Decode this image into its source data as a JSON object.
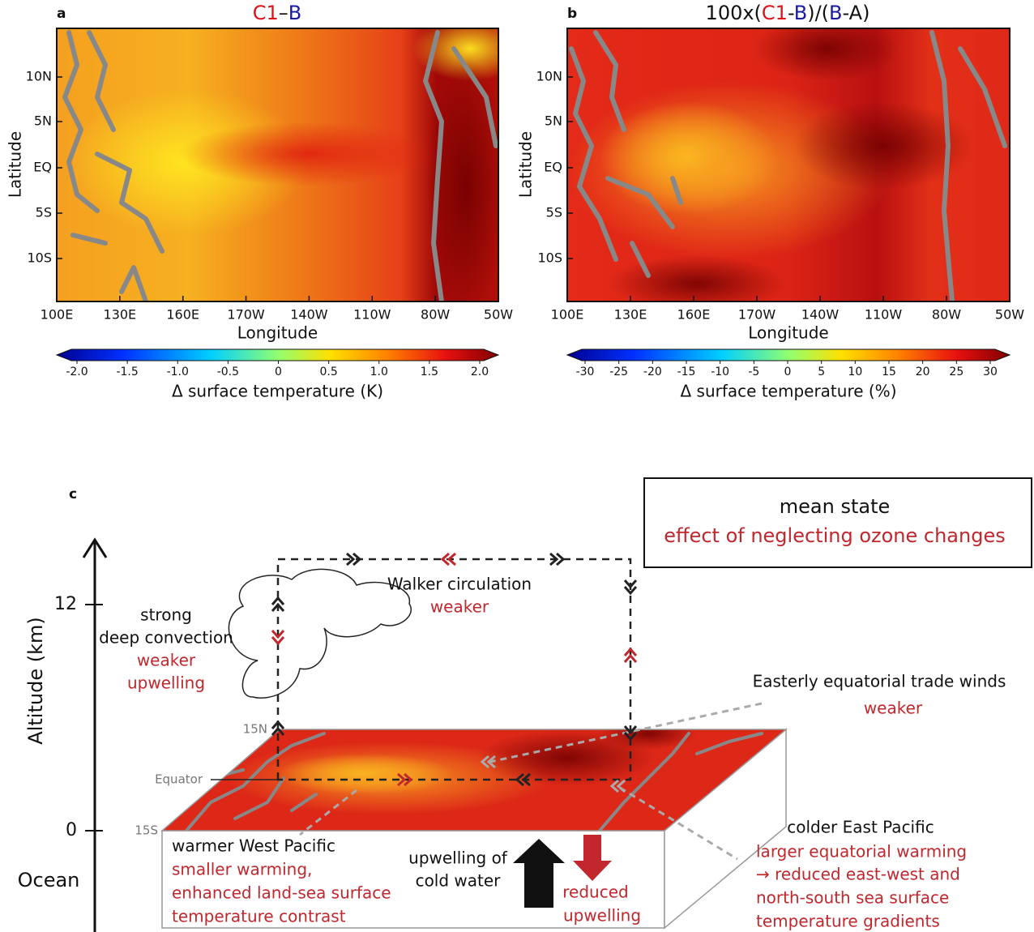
{
  "panel_a": {
    "label": "a",
    "title": [
      "C1",
      "–",
      "B"
    ],
    "y_label": "Latitude",
    "x_label": "Longitude",
    "yticks": [
      "10N",
      "5N",
      "EQ",
      "5S",
      "10S"
    ],
    "xticks": [
      "100E",
      "130E",
      "160E",
      "170W",
      "140W",
      "110W",
      "80W",
      "50W"
    ],
    "colorbar_ticks": [
      "-2.0",
      "-1.5",
      "-1.0",
      "-0.5",
      "0",
      "0.5",
      "1.0",
      "1.5",
      "2.0"
    ],
    "colorbar_label": "Δ surface temperature (K)"
  },
  "panel_b": {
    "label": "b",
    "title": [
      "100x(",
      "C1",
      "-",
      "B",
      ")/(",
      "B",
      "-A)"
    ],
    "y_label": "Latitude",
    "x_label": "Longitude",
    "yticks": [
      "10N",
      "5N",
      "EQ",
      "5S",
      "10S"
    ],
    "xticks": [
      "100E",
      "130E",
      "160E",
      "170W",
      "140W",
      "110W",
      "80W",
      "50W"
    ],
    "colorbar_ticks": [
      "-30",
      "-25",
      "-20",
      "-15",
      "-10",
      "-5",
      "0",
      "5",
      "10",
      "15",
      "20",
      "25",
      "30"
    ],
    "colorbar_label": "Δ surface temperature (%)"
  },
  "panel_c": {
    "label": "c",
    "box": [
      "mean state",
      "effect of  neglecting ozone changes"
    ],
    "axis_label": "Altitude (km)",
    "axis_ticks": [
      "12",
      "0"
    ],
    "ocean": "Ocean",
    "lat_labels": [
      "15N",
      "Equator",
      "15S"
    ],
    "walker": [
      "Walker circulation",
      "weaker"
    ],
    "convection": [
      "strong",
      "deep convection",
      "weaker",
      "upwelling"
    ],
    "trade": [
      "Easterly equatorial trade winds",
      "weaker"
    ],
    "west": [
      "warmer West Pacific",
      "smaller warming,",
      "enhanced land-sea surface",
      "temperature contrast"
    ],
    "upwelling": [
      "upwelling of",
      "cold water"
    ],
    "reduced": [
      "reduced",
      "upwelling"
    ],
    "east": [
      "colder East Pacific",
      "larger equatorial warming",
      "→ reduced east-west and",
      "north-south sea surface",
      "temperature gradients"
    ]
  }
}
